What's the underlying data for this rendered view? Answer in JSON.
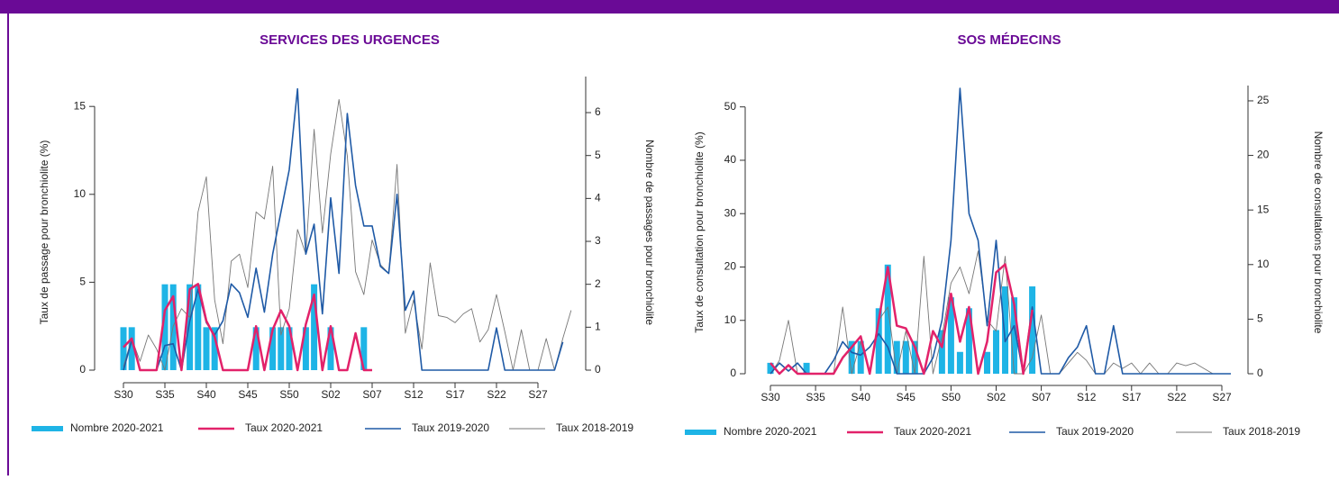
{
  "chart_data": [
    {
      "type": "combo",
      "title": "SERVICES DES URGENCES",
      "y_label": "Taux de passage pour bronchiolite (%)",
      "y2_label": "Nombre de passages pour bronchiolite",
      "categories": [
        "S30",
        null,
        null,
        null,
        null,
        "S35",
        null,
        null,
        null,
        null,
        "S40",
        null,
        null,
        null,
        null,
        "S45",
        null,
        null,
        null,
        null,
        "S50",
        null,
        null,
        null,
        null,
        "S02",
        null,
        null,
        null,
        null,
        "S07",
        null,
        null,
        null,
        null,
        "S12",
        null,
        null,
        null,
        null,
        "S17",
        null,
        null,
        null,
        null,
        "S22",
        null,
        null,
        null,
        null,
        "S27",
        null,
        null,
        null,
        null
      ],
      "ylim": [
        0,
        16.7
      ],
      "yticks": [
        0,
        5,
        10,
        15
      ],
      "y2lim": [
        0,
        6.84
      ],
      "y2ticks": [
        0,
        1,
        2,
        3,
        4,
        5,
        6
      ],
      "series": [
        {
          "name": "Nombre 2020-2021",
          "type": "bar",
          "axis": "y2",
          "color": "#1eb4e6",
          "values": [
            1,
            1,
            0,
            0,
            0,
            2,
            2,
            0,
            2,
            2,
            1,
            1,
            0,
            0,
            0,
            0,
            1,
            0,
            1,
            1,
            1,
            0,
            1,
            2,
            0,
            1,
            0,
            0,
            0,
            1,
            0,
            null,
            null,
            null,
            null,
            null,
            null,
            null,
            null,
            null,
            null,
            null,
            null,
            null,
            null,
            null,
            null,
            null,
            null,
            null,
            null,
            null,
            null,
            null,
            null
          ]
        },
        {
          "name": "Taux 2020-2021",
          "type": "line",
          "color": "#e2226a",
          "line_width": 2.5,
          "values": [
            1.3,
            1.8,
            0,
            0,
            0,
            3.4,
            4.2,
            0,
            4.6,
            4.9,
            2.8,
            1.9,
            0,
            0,
            0,
            0,
            2.5,
            0,
            2.3,
            3.4,
            2.5,
            0,
            2.6,
            4.3,
            0,
            2.5,
            0,
            0,
            2.1,
            0,
            0,
            null,
            null,
            null,
            null,
            null,
            null,
            null,
            null,
            null,
            null,
            null,
            null,
            null,
            null,
            null,
            null,
            null,
            null,
            null,
            null,
            null,
            null,
            null,
            null
          ]
        },
        {
          "name": "Taux 2019-2020",
          "type": "line",
          "color": "#1f5aa6",
          "line_width": 1.6,
          "values": [
            0,
            1.7,
            0,
            0,
            0,
            1.4,
            1.5,
            0,
            2.8,
            4.6,
            2.7,
            2.0,
            2.8,
            4.9,
            4.4,
            3.0,
            5.8,
            3.3,
            6.6,
            9.0,
            11.4,
            16.0,
            6.6,
            8.3,
            3.2,
            9.8,
            5.5,
            14.6,
            10.5,
            8.2,
            8.2,
            5.9,
            5.5,
            10.0,
            3.4,
            4.5,
            0,
            0,
            0,
            0,
            0,
            0,
            0,
            0,
            0,
            2.4,
            0,
            0,
            0,
            0,
            0,
            0,
            0,
            1.6,
            null
          ]
        },
        {
          "name": "Taux 2018-2019",
          "type": "line",
          "color": "#777777",
          "line_width": 0.9,
          "values": [
            0.2,
            1.8,
            0.5,
            2.0,
            1.2,
            0,
            2.5,
            3.5,
            3.0,
            9.0,
            11.0,
            4.0,
            1.5,
            6.2,
            6.6,
            4.7,
            9.0,
            8.6,
            11.6,
            2.0,
            3.5,
            8.0,
            6.6,
            13.7,
            7.8,
            12.3,
            15.4,
            12.2,
            5.6,
            4.3,
            7.4,
            6.0,
            5.5,
            11.7,
            2.1,
            4.0,
            1.2,
            6.1,
            3.1,
            3.0,
            2.7,
            3.2,
            3.5,
            1.6,
            2.3,
            4.3,
            2.2,
            0,
            2.3,
            0,
            0,
            1.8,
            0,
            1.8,
            3.4
          ]
        }
      ]
    },
    {
      "type": "combo",
      "title": "SOS MÉDECINS",
      "y_label": "Taux de consultation pour bronchiolite (%)",
      "y2_label": "Nombre de consultations pour bronchiolite",
      "categories": [
        "S30",
        null,
        null,
        null,
        null,
        "S35",
        null,
        null,
        null,
        null,
        "S40",
        null,
        null,
        null,
        null,
        "S45",
        null,
        null,
        null,
        null,
        "S50",
        null,
        null,
        null,
        null,
        "S02",
        null,
        null,
        null,
        null,
        "S07",
        null,
        null,
        null,
        null,
        "S12",
        null,
        null,
        null,
        null,
        "S17",
        null,
        null,
        null,
        null,
        "S22",
        null,
        null,
        null,
        null,
        "S27",
        null
      ],
      "ylim": [
        0,
        54
      ],
      "yticks": [
        0,
        10,
        20,
        30,
        40,
        50
      ],
      "y2lim": [
        0,
        26.4
      ],
      "y2ticks": [
        0,
        5,
        10,
        15,
        20,
        25
      ],
      "series": [
        {
          "name": "Nombre 2020-2021",
          "type": "bar",
          "axis": "y2",
          "color": "#1eb4e6",
          "values": [
            1,
            0,
            0,
            0,
            1,
            0,
            0,
            0,
            0,
            3,
            3,
            0,
            6,
            10,
            3,
            3,
            3,
            0,
            0,
            4,
            7,
            2,
            6,
            0,
            2,
            4,
            8,
            7,
            0,
            8,
            null,
            null,
            null,
            null,
            null,
            null,
            null,
            null,
            null,
            null,
            null,
            null,
            null,
            null,
            null,
            null,
            null,
            null,
            null,
            null,
            null,
            null
          ]
        },
        {
          "name": "Taux 2020-2021",
          "type": "line",
          "color": "#e2226a",
          "line_width": 2.5,
          "values": [
            2,
            0,
            1.6,
            0,
            0,
            0,
            0,
            0,
            3,
            5,
            7,
            0,
            10,
            20,
            9,
            8.5,
            5,
            0,
            8,
            5,
            15,
            6,
            12.5,
            0,
            6,
            19,
            20.5,
            13,
            0,
            12,
            null,
            null,
            null,
            null,
            null,
            null,
            null,
            null,
            null,
            null,
            null,
            null,
            null,
            null,
            null,
            null,
            null,
            null,
            null,
            null,
            null,
            null
          ]
        },
        {
          "name": "Taux 2019-2020",
          "type": "line",
          "color": "#1f5aa6",
          "line_width": 1.6,
          "values": [
            0,
            2,
            0.5,
            2,
            0,
            0,
            0,
            2.5,
            6,
            4,
            3.5,
            5,
            7.5,
            5,
            0,
            0,
            0,
            0,
            3,
            10,
            25,
            53.5,
            30,
            25,
            9,
            25,
            6,
            9,
            0,
            12.5,
            0,
            0,
            0,
            3,
            5,
            9,
            0,
            0,
            9,
            0,
            0,
            0,
            0,
            0,
            0,
            0,
            0,
            0,
            0,
            0,
            0,
            0
          ]
        },
        {
          "name": "Taux 2018-2019",
          "type": "line",
          "color": "#777777",
          "line_width": 0.9,
          "values": [
            0,
            2.5,
            10,
            0,
            0,
            0,
            0,
            0,
            12.5,
            0,
            6,
            0,
            10,
            12.5,
            0,
            8,
            0,
            22,
            0,
            7,
            17,
            20,
            15,
            23,
            10,
            8,
            22,
            0,
            0,
            3,
            11,
            0,
            0,
            2,
            4,
            2.5,
            0,
            0,
            2,
            1,
            2,
            0,
            2,
            0,
            0,
            2,
            1.5,
            2,
            1,
            0,
            0,
            0
          ]
        }
      ]
    }
  ]
}
